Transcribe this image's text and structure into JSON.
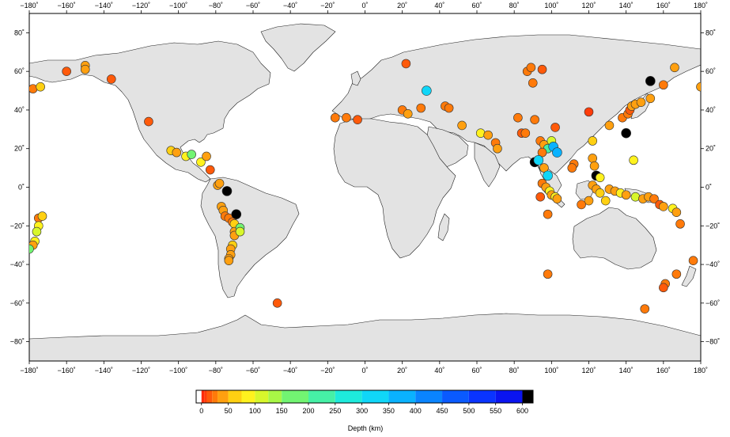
{
  "map": {
    "projection": "equirectangular",
    "lon_range": [
      -180,
      180
    ],
    "lat_range": [
      -90,
      90
    ],
    "lon_ticks": [
      -180,
      -160,
      -140,
      -120,
      -100,
      -80,
      -60,
      -40,
      -20,
      0,
      20,
      40,
      60,
      80,
      100,
      120,
      140,
      160,
      180
    ],
    "lat_ticks": [
      -80,
      -60,
      -40,
      -20,
      0,
      20,
      40,
      60,
      80
    ],
    "lon_tick_labels": [
      "−180˚",
      "−160˚",
      "−140˚",
      "−120˚",
      "−100˚",
      "−80˚",
      "−60˚",
      "−40˚",
      "−20˚",
      "0˚",
      "20˚",
      "40˚",
      "60˚",
      "80˚",
      "100˚",
      "120˚",
      "140˚",
      "160˚",
      "180˚"
    ],
    "lat_tick_labels": [
      "−80˚",
      "−60˚",
      "−40˚",
      "−20˚",
      "0˚",
      "20˚",
      "40˚",
      "60˚",
      "80˚"
    ],
    "land_color": "#e3e3e3",
    "ocean_color": "#ffffff",
    "coast_color": "#222222"
  },
  "colorbar": {
    "title": "Depth (km)",
    "ticks": [
      0,
      50,
      100,
      150,
      200,
      250,
      300,
      350,
      400,
      450,
      500,
      550,
      600
    ],
    "tick_labels": [
      "0",
      "50",
      "100",
      "150",
      "200",
      "250",
      "300",
      "350",
      "400",
      "450",
      "500",
      "550",
      "600"
    ],
    "range": [
      -10,
      620
    ],
    "bins": [
      {
        "from": -10,
        "to": 0,
        "color": "#ffffff"
      },
      {
        "from": 0,
        "to": 5,
        "color": "#ff2a0a"
      },
      {
        "from": 5,
        "to": 10,
        "color": "#ff3c0a"
      },
      {
        "from": 10,
        "to": 20,
        "color": "#ff5a0a"
      },
      {
        "from": 20,
        "to": 30,
        "color": "#ff7a0a"
      },
      {
        "from": 30,
        "to": 50,
        "color": "#ffa010"
      },
      {
        "from": 50,
        "to": 75,
        "color": "#ffd012"
      },
      {
        "from": 75,
        "to": 100,
        "color": "#fff21e"
      },
      {
        "from": 100,
        "to": 125,
        "color": "#d8f72c"
      },
      {
        "from": 125,
        "to": 150,
        "color": "#a8f746"
      },
      {
        "from": 150,
        "to": 200,
        "color": "#72f472"
      },
      {
        "from": 200,
        "to": 250,
        "color": "#46f0a6"
      },
      {
        "from": 250,
        "to": 300,
        "color": "#1eeadc"
      },
      {
        "from": 300,
        "to": 350,
        "color": "#10d6f8"
      },
      {
        "from": 350,
        "to": 400,
        "color": "#0ab2ff"
      },
      {
        "from": 400,
        "to": 450,
        "color": "#0a84ff"
      },
      {
        "from": 450,
        "to": 500,
        "color": "#0a5aff"
      },
      {
        "from": 500,
        "to": 550,
        "color": "#0a34ff"
      },
      {
        "from": 550,
        "to": 600,
        "color": "#0a14f0"
      },
      {
        "from": 600,
        "to": 620,
        "color": "#000000"
      }
    ]
  },
  "events": [
    {
      "lon": -178,
      "lat": 51,
      "depth": 20
    },
    {
      "lon": -174,
      "lat": 52,
      "depth": 50
    },
    {
      "lon": -160,
      "lat": 60,
      "depth": 15
    },
    {
      "lon": -150,
      "lat": 63,
      "depth": 30
    },
    {
      "lon": -150,
      "lat": 61,
      "depth": 30
    },
    {
      "lon": -136,
      "lat": 56,
      "depth": 10
    },
    {
      "lon": -116,
      "lat": 34,
      "depth": 10
    },
    {
      "lon": -104,
      "lat": 19,
      "depth": 50
    },
    {
      "lon": -101,
      "lat": 18,
      "depth": 40
    },
    {
      "lon": -96,
      "lat": 16,
      "depth": 75
    },
    {
      "lon": -93,
      "lat": 17,
      "depth": 160
    },
    {
      "lon": -88,
      "lat": 13,
      "depth": 75
    },
    {
      "lon": -85,
      "lat": 16,
      "depth": 30
    },
    {
      "lon": -83,
      "lat": 9,
      "depth": 10
    },
    {
      "lon": -79,
      "lat": 1,
      "depth": 30
    },
    {
      "lon": -78,
      "lat": 2,
      "depth": 30
    },
    {
      "lon": -74,
      "lat": -2,
      "depth": 610
    },
    {
      "lon": -77,
      "lat": -10,
      "depth": 40
    },
    {
      "lon": -76,
      "lat": -12,
      "depth": 40
    },
    {
      "lon": -75,
      "lat": -15,
      "depth": 20
    },
    {
      "lon": -73,
      "lat": -16,
      "depth": 20
    },
    {
      "lon": -71,
      "lat": -18,
      "depth": 20
    },
    {
      "lon": -70,
      "lat": -19,
      "depth": 50
    },
    {
      "lon": -69,
      "lat": -14,
      "depth": 610
    },
    {
      "lon": -70,
      "lat": -23,
      "depth": 40
    },
    {
      "lon": -70,
      "lat": -25,
      "depth": 30
    },
    {
      "lon": -67,
      "lat": -21,
      "depth": 180
    },
    {
      "lon": -67,
      "lat": -23,
      "depth": 100
    },
    {
      "lon": -71,
      "lat": -30,
      "depth": 50
    },
    {
      "lon": -72,
      "lat": -32,
      "depth": 30
    },
    {
      "lon": -72,
      "lat": -35,
      "depth": 30
    },
    {
      "lon": -73,
      "lat": -37,
      "depth": 30
    },
    {
      "lon": -73,
      "lat": -38,
      "depth": 30
    },
    {
      "lon": -47,
      "lat": -60,
      "depth": 10
    },
    {
      "lon": -175,
      "lat": -16,
      "depth": 20
    },
    {
      "lon": -173,
      "lat": -15,
      "depth": 50
    },
    {
      "lon": -175,
      "lat": -20,
      "depth": 75
    },
    {
      "lon": -176,
      "lat": -23,
      "depth": 100
    },
    {
      "lon": -177,
      "lat": -28,
      "depth": 75
    },
    {
      "lon": -178,
      "lat": -30,
      "depth": 40
    },
    {
      "lon": -180,
      "lat": -32,
      "depth": 180
    },
    {
      "lon": -16,
      "lat": 36,
      "depth": 20
    },
    {
      "lon": -10,
      "lat": 36,
      "depth": 20
    },
    {
      "lon": -4,
      "lat": 35,
      "depth": 10
    },
    {
      "lon": 22,
      "lat": 64,
      "depth": 10
    },
    {
      "lon": 20,
      "lat": 40,
      "depth": 20
    },
    {
      "lon": 23,
      "lat": 38,
      "depth": 30
    },
    {
      "lon": 33,
      "lat": 50,
      "depth": 330
    },
    {
      "lon": 30,
      "lat": 41,
      "depth": 20
    },
    {
      "lon": 43,
      "lat": 42,
      "depth": 20
    },
    {
      "lon": 45,
      "lat": 41,
      "depth": 20
    },
    {
      "lon": 52,
      "lat": 32,
      "depth": 40
    },
    {
      "lon": 62,
      "lat": 28,
      "depth": 75
    },
    {
      "lon": 66,
      "lat": 27,
      "depth": 30
    },
    {
      "lon": 70,
      "lat": 23,
      "depth": 20
    },
    {
      "lon": 71,
      "lat": 20,
      "depth": 30
    },
    {
      "lon": 82,
      "lat": 36,
      "depth": 20
    },
    {
      "lon": 84,
      "lat": 28,
      "depth": 10
    },
    {
      "lon": 86,
      "lat": 28,
      "depth": 20
    },
    {
      "lon": 87,
      "lat": 60,
      "depth": 20
    },
    {
      "lon": 89,
      "lat": 62,
      "depth": 20
    },
    {
      "lon": 90,
      "lat": 54,
      "depth": 20
    },
    {
      "lon": 95,
      "lat": 61,
      "depth": 10
    },
    {
      "lon": 91,
      "lat": 35,
      "depth": 20
    },
    {
      "lon": 102,
      "lat": 31,
      "depth": 10
    },
    {
      "lon": 94,
      "lat": 24,
      "depth": 20
    },
    {
      "lon": 96,
      "lat": 22,
      "depth": 30
    },
    {
      "lon": 100,
      "lat": 24,
      "depth": 100
    },
    {
      "lon": 98,
      "lat": 20,
      "depth": 200
    },
    {
      "lon": 101,
      "lat": 21,
      "depth": 360
    },
    {
      "lon": 103,
      "lat": 18,
      "depth": 380
    },
    {
      "lon": 95,
      "lat": 18,
      "depth": 20
    },
    {
      "lon": 91,
      "lat": 13,
      "depth": 610
    },
    {
      "lon": 93,
      "lat": 14,
      "depth": 310
    },
    {
      "lon": 96,
      "lat": 10,
      "depth": 30
    },
    {
      "lon": 98,
      "lat": 6,
      "depth": 300
    },
    {
      "lon": 95,
      "lat": 2,
      "depth": 20
    },
    {
      "lon": 97,
      "lat": 0,
      "depth": 30
    },
    {
      "lon": 99,
      "lat": -2,
      "depth": 75
    },
    {
      "lon": 100,
      "lat": -4,
      "depth": 30
    },
    {
      "lon": 102,
      "lat": -5,
      "depth": 75
    },
    {
      "lon": 103,
      "lat": -6,
      "depth": 40
    },
    {
      "lon": 94,
      "lat": -5,
      "depth": 10
    },
    {
      "lon": 98,
      "lat": -14,
      "depth": 20
    },
    {
      "lon": 98,
      "lat": -45,
      "depth": 20
    },
    {
      "lon": 112,
      "lat": 12,
      "depth": 20
    },
    {
      "lon": 111,
      "lat": 10,
      "depth": 20
    },
    {
      "lon": 120,
      "lat": 39,
      "depth": 5
    },
    {
      "lon": 122,
      "lat": 24,
      "depth": 50
    },
    {
      "lon": 122,
      "lat": 15,
      "depth": 30
    },
    {
      "lon": 123,
      "lat": 11,
      "depth": 30
    },
    {
      "lon": 124,
      "lat": 6,
      "depth": 610
    },
    {
      "lon": 126,
      "lat": 5,
      "depth": 75
    },
    {
      "lon": 122,
      "lat": 1,
      "depth": 30
    },
    {
      "lon": 124,
      "lat": -1,
      "depth": 30
    },
    {
      "lon": 126,
      "lat": -3,
      "depth": 50
    },
    {
      "lon": 120,
      "lat": -7,
      "depth": 30
    },
    {
      "lon": 116,
      "lat": -9,
      "depth": 20
    },
    {
      "lon": 129,
      "lat": -7,
      "depth": 50
    },
    {
      "lon": 131,
      "lat": -1,
      "depth": 30
    },
    {
      "lon": 134,
      "lat": -2,
      "depth": 40
    },
    {
      "lon": 137,
      "lat": -3,
      "depth": 75
    },
    {
      "lon": 140,
      "lat": -4,
      "depth": 30
    },
    {
      "lon": 145,
      "lat": -5,
      "depth": 100
    },
    {
      "lon": 149,
      "lat": -6,
      "depth": 30
    },
    {
      "lon": 152,
      "lat": -5,
      "depth": 30
    },
    {
      "lon": 155,
      "lat": -6,
      "depth": 20
    },
    {
      "lon": 158,
      "lat": -9,
      "depth": 10
    },
    {
      "lon": 160,
      "lat": -10,
      "depth": 40
    },
    {
      "lon": 165,
      "lat": -11,
      "depth": 75
    },
    {
      "lon": 167,
      "lat": -13,
      "depth": 40
    },
    {
      "lon": 169,
      "lat": -19,
      "depth": 20
    },
    {
      "lon": 176,
      "lat": -38,
      "depth": 20
    },
    {
      "lon": 167,
      "lat": -45,
      "depth": 20
    },
    {
      "lon": 161,
      "lat": -50,
      "depth": 20
    },
    {
      "lon": 150,
      "lat": -63,
      "depth": 20
    },
    {
      "lon": 160,
      "lat": -52,
      "depth": 15
    },
    {
      "lon": 131,
      "lat": 32,
      "depth": 40
    },
    {
      "lon": 138,
      "lat": 36,
      "depth": 20
    },
    {
      "lon": 141,
      "lat": 38,
      "depth": 20
    },
    {
      "lon": 142,
      "lat": 40,
      "depth": 15
    },
    {
      "lon": 143,
      "lat": 42,
      "depth": 30
    },
    {
      "lon": 145,
      "lat": 43,
      "depth": 30
    },
    {
      "lon": 148,
      "lat": 44,
      "depth": 40
    },
    {
      "lon": 153,
      "lat": 46,
      "depth": 30
    },
    {
      "lon": 140,
      "lat": 28,
      "depth": 610
    },
    {
      "lon": 153,
      "lat": 55,
      "depth": 610
    },
    {
      "lon": 160,
      "lat": 53,
      "depth": 20
    },
    {
      "lon": 166,
      "lat": 62,
      "depth": 30
    },
    {
      "lon": 144,
      "lat": 14,
      "depth": 75
    },
    {
      "lon": 180,
      "lat": 52,
      "depth": 40
    }
  ]
}
